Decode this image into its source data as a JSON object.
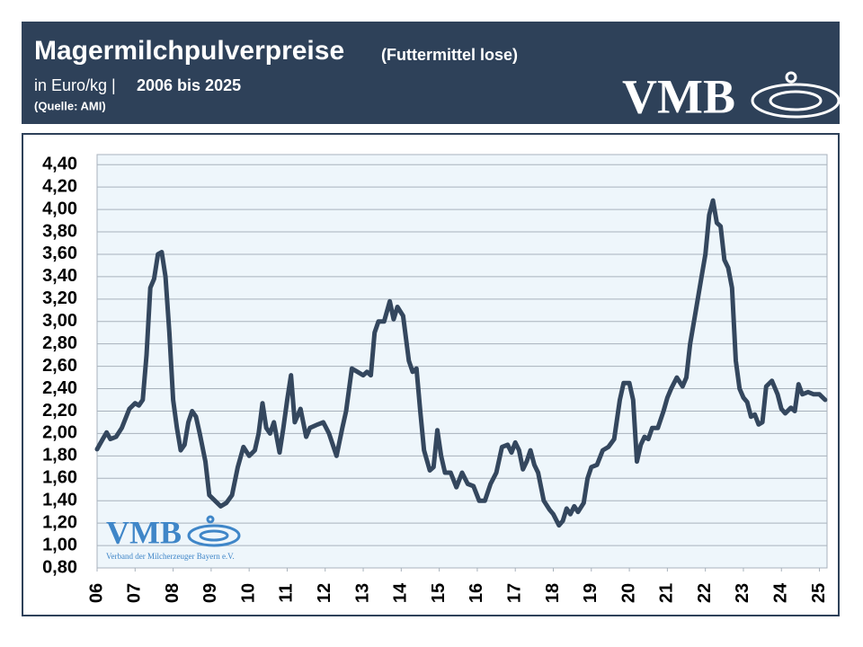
{
  "header": {
    "title": "Magermilchpulverpreise",
    "title_note": "(Futtermittel lose)",
    "subtitle_unit": "in Euro/kg |",
    "subtitle_range": "2006 bis 2025",
    "source": "(Quelle: AMI)",
    "logo": "VMB"
  },
  "watermark": {
    "logo": "VMB",
    "caption": "Verband der Milcherzeuger Bayern e.V."
  },
  "chart_data": {
    "type": "line",
    "color": "#34475e",
    "grid": true,
    "xlim": [
      2006,
      2025.2
    ],
    "xticks": [
      {
        "value": 2006,
        "label": "06"
      },
      {
        "value": 2007,
        "label": "07"
      },
      {
        "value": 2008,
        "label": "08"
      },
      {
        "value": 2009,
        "label": "09"
      },
      {
        "value": 2010,
        "label": "10"
      },
      {
        "value": 2011,
        "label": "11"
      },
      {
        "value": 2012,
        "label": "12"
      },
      {
        "value": 2013,
        "label": "13"
      },
      {
        "value": 2014,
        "label": "14"
      },
      {
        "value": 2015,
        "label": "15"
      },
      {
        "value": 2016,
        "label": "16"
      },
      {
        "value": 2017,
        "label": "17"
      },
      {
        "value": 2018,
        "label": "18"
      },
      {
        "value": 2019,
        "label": "19"
      },
      {
        "value": 2020,
        "label": "20"
      },
      {
        "value": 2021,
        "label": "21"
      },
      {
        "value": 2022,
        "label": "22"
      },
      {
        "value": 2023,
        "label": "23"
      },
      {
        "value": 2024,
        "label": "24"
      },
      {
        "value": 2025,
        "label": "25"
      }
    ],
    "ylim": [
      0.8,
      4.49
    ],
    "yticks": [
      {
        "value": 0.8,
        "label": "0,80"
      },
      {
        "value": 1.0,
        "label": "1,00"
      },
      {
        "value": 1.2,
        "label": "1,20"
      },
      {
        "value": 1.4,
        "label": "1,40"
      },
      {
        "value": 1.6,
        "label": "1,60"
      },
      {
        "value": 1.8,
        "label": "1,80"
      },
      {
        "value": 2.0,
        "label": "2,00"
      },
      {
        "value": 2.2,
        "label": "2,20"
      },
      {
        "value": 2.4,
        "label": "2,40"
      },
      {
        "value": 2.6,
        "label": "2,60"
      },
      {
        "value": 2.8,
        "label": "2,80"
      },
      {
        "value": 3.0,
        "label": "3,00"
      },
      {
        "value": 3.2,
        "label": "3,20"
      },
      {
        "value": 3.4,
        "label": "3,40"
      },
      {
        "value": 3.6,
        "label": "3,60"
      },
      {
        "value": 3.8,
        "label": "3,80"
      },
      {
        "value": 4.0,
        "label": "4,00"
      },
      {
        "value": 4.2,
        "label": "4,20"
      },
      {
        "value": 4.4,
        "label": "4,40"
      }
    ],
    "x": [
      2006.0,
      2006.15,
      2006.25,
      2006.35,
      2006.5,
      2006.65,
      2006.85,
      2007.0,
      2007.1,
      2007.2,
      2007.3,
      2007.4,
      2007.5,
      2007.6,
      2007.7,
      2007.8,
      2007.9,
      2008.0,
      2008.1,
      2008.2,
      2008.3,
      2008.4,
      2008.5,
      2008.6,
      2008.7,
      2008.85,
      2008.95,
      2009.1,
      2009.25,
      2009.4,
      2009.55,
      2009.7,
      2009.85,
      2010.0,
      2010.15,
      2010.25,
      2010.35,
      2010.45,
      2010.55,
      2010.65,
      2010.8,
      2010.9,
      2011.0,
      2011.1,
      2011.2,
      2011.35,
      2011.5,
      2011.6,
      2011.8,
      2011.95,
      2012.1,
      2012.3,
      2012.45,
      2012.55,
      2012.7,
      2012.85,
      2013.0,
      2013.1,
      2013.2,
      2013.3,
      2013.4,
      2013.55,
      2013.7,
      2013.8,
      2013.9,
      2014.05,
      2014.2,
      2014.3,
      2014.4,
      2014.5,
      2014.6,
      2014.75,
      2014.85,
      2014.95,
      2015.05,
      2015.15,
      2015.3,
      2015.45,
      2015.6,
      2015.75,
      2015.9,
      2016.05,
      2016.2,
      2016.35,
      2016.5,
      2016.65,
      2016.8,
      2016.9,
      2017.0,
      2017.1,
      2017.2,
      2017.3,
      2017.4,
      2017.5,
      2017.6,
      2017.75,
      2017.9,
      2018.0,
      2018.15,
      2018.25,
      2018.35,
      2018.45,
      2018.55,
      2018.65,
      2018.8,
      2018.9,
      2019.0,
      2019.15,
      2019.3,
      2019.45,
      2019.6,
      2019.75,
      2019.85,
      2020.0,
      2020.1,
      2020.2,
      2020.3,
      2020.4,
      2020.5,
      2020.6,
      2020.75,
      2020.9,
      2021.0,
      2021.1,
      2021.25,
      2021.4,
      2021.5,
      2021.6,
      2021.75,
      2021.9,
      2022.0,
      2022.1,
      2022.2,
      2022.3,
      2022.4,
      2022.5,
      2022.6,
      2022.7,
      2022.8,
      2022.9,
      2023.0,
      2023.1,
      2023.2,
      2023.3,
      2023.4,
      2023.5,
      2023.6,
      2023.75,
      2023.9,
      2024.0,
      2024.1,
      2024.25,
      2024.35,
      2024.45,
      2024.55,
      2024.7,
      2024.85,
      2025.0,
      2025.15
    ],
    "values": [
      1.86,
      1.95,
      2.01,
      1.95,
      1.97,
      2.05,
      2.22,
      2.27,
      2.25,
      2.3,
      2.7,
      3.3,
      3.38,
      3.6,
      3.62,
      3.4,
      2.9,
      2.3,
      2.05,
      1.85,
      1.9,
      2.1,
      2.2,
      2.15,
      2.0,
      1.75,
      1.45,
      1.4,
      1.35,
      1.38,
      1.45,
      1.7,
      1.88,
      1.8,
      1.85,
      2.0,
      2.27,
      2.05,
      2.0,
      2.1,
      1.83,
      2.05,
      2.3,
      2.52,
      2.1,
      2.22,
      1.97,
      2.05,
      2.08,
      2.1,
      2.0,
      1.8,
      2.05,
      2.2,
      2.58,
      2.55,
      2.52,
      2.55,
      2.52,
      2.9,
      3.0,
      3.0,
      3.18,
      3.02,
      3.13,
      3.05,
      2.65,
      2.55,
      2.58,
      2.2,
      1.85,
      1.67,
      1.7,
      2.03,
      1.8,
      1.65,
      1.65,
      1.52,
      1.65,
      1.55,
      1.53,
      1.4,
      1.4,
      1.55,
      1.65,
      1.88,
      1.9,
      1.83,
      1.92,
      1.85,
      1.68,
      1.75,
      1.85,
      1.72,
      1.65,
      1.4,
      1.32,
      1.28,
      1.18,
      1.22,
      1.33,
      1.28,
      1.35,
      1.3,
      1.38,
      1.6,
      1.7,
      1.72,
      1.85,
      1.88,
      1.95,
      2.3,
      2.45,
      2.45,
      2.3,
      1.75,
      1.9,
      1.97,
      1.95,
      2.05,
      2.05,
      2.2,
      2.32,
      2.4,
      2.5,
      2.42,
      2.5,
      2.8,
      3.1,
      3.4,
      3.6,
      3.95,
      4.08,
      3.88,
      3.85,
      3.55,
      3.48,
      3.3,
      2.65,
      2.4,
      2.32,
      2.28,
      2.15,
      2.17,
      2.08,
      2.1,
      2.42,
      2.47,
      2.35,
      2.22,
      2.18,
      2.23,
      2.2,
      2.44,
      2.35,
      2.37,
      2.35,
      2.35,
      2.3
    ]
  }
}
